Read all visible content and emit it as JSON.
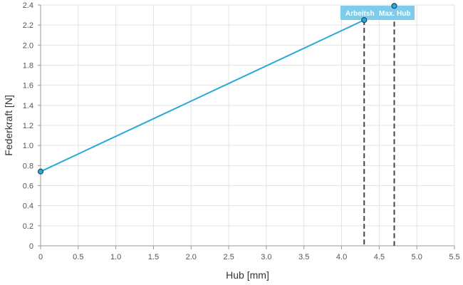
{
  "chart_data": {
    "type": "line",
    "title": "",
    "xlabel": "Hub [mm]",
    "ylabel": "Federkraft [N]",
    "xlim": [
      0,
      5.5
    ],
    "ylim": [
      0,
      2.4
    ],
    "x_ticks": [
      "0",
      "0.5",
      "1.0",
      "1.5",
      "2.0",
      "2.5",
      "3.0",
      "3.5",
      "4.0",
      "4.5",
      "5.0",
      "5.5"
    ],
    "y_ticks": [
      "0",
      "0.2",
      "0.4",
      "0.6",
      "0.8",
      "1.0",
      "1.2",
      "1.4",
      "1.6",
      "1.8",
      "2.0",
      "2.2",
      "2.4"
    ],
    "grid": true,
    "series": [
      {
        "x": [
          0,
          4.3,
          4.7
        ],
        "y": [
          0.74,
          2.25,
          2.39
        ],
        "color": "#2aa9d8"
      }
    ],
    "markers": [
      {
        "label": "Arbeitsh",
        "x": 4.3,
        "y": 2.25
      },
      {
        "label": "Max. Hub",
        "x": 4.7,
        "y": 2.39
      }
    ],
    "marker_label_bg": "#7fcbea",
    "dash_color": "#444444"
  }
}
